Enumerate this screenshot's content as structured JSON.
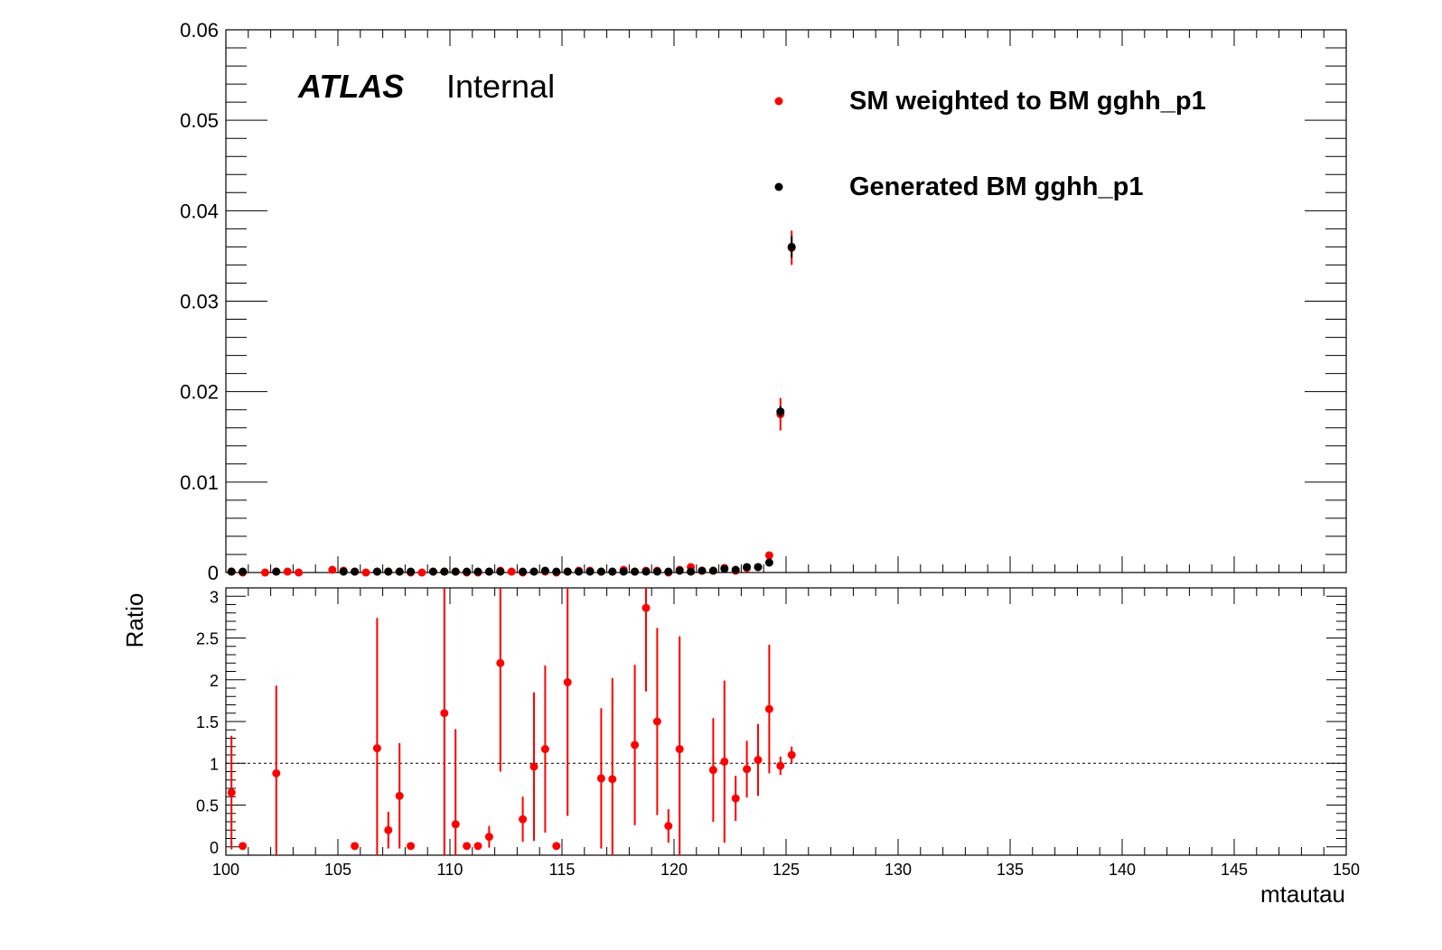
{
  "chart_data": [
    {
      "type": "scatter",
      "panel": "main",
      "xlim": [
        100,
        150
      ],
      "ylim": [
        0,
        0.06
      ],
      "yticks": [
        "0",
        "0.01",
        "0.02",
        "0.03",
        "0.04",
        "0.05",
        "0.06"
      ],
      "label": {
        "atlas": "ATLAS",
        "status": "Internal"
      },
      "legend_position": "top-right",
      "series": [
        {
          "name": "SM weighted to BM gghh_p1",
          "color": "#ff0000",
          "points": [
            [
              100.25,
              0.0001,
              5e-05
            ],
            [
              100.75,
              0.0,
              0.0
            ],
            [
              101.75,
              0.0,
              0.0
            ],
            [
              102.25,
              0.0001,
              5e-05
            ],
            [
              102.75,
              0.0001,
              5e-05
            ],
            [
              103.25,
              0.0,
              0.0
            ],
            [
              104.75,
              0.0003,
              0.0002
            ],
            [
              105.25,
              0.0002,
              0.0001
            ],
            [
              105.75,
              0.0001,
              5e-05
            ],
            [
              106.25,
              0.0,
              0.0
            ],
            [
              106.75,
              0.0001,
              5e-05
            ],
            [
              107.25,
              0.0001,
              5e-05
            ],
            [
              107.75,
              0.0001,
              5e-05
            ],
            [
              108.25,
              0.0,
              0.0
            ],
            [
              108.75,
              0.0,
              0.0
            ],
            [
              109.25,
              0.0001,
              5e-05
            ],
            [
              109.75,
              0.0001,
              5e-05
            ],
            [
              110.25,
              0.0001,
              5e-05
            ],
            [
              110.75,
              0.0,
              0.0
            ],
            [
              111.25,
              0.0,
              0.0
            ],
            [
              111.75,
              0.0001,
              5e-05
            ],
            [
              112.25,
              0.0002,
              0.0001
            ],
            [
              112.75,
              0.0001,
              5e-05
            ],
            [
              113.25,
              0.0,
              0.0
            ],
            [
              113.75,
              0.0001,
              5e-05
            ],
            [
              114.25,
              0.0001,
              5e-05
            ],
            [
              114.75,
              0.0,
              0.0
            ],
            [
              115.25,
              0.0001,
              5e-05
            ],
            [
              115.75,
              0.0002,
              0.0001
            ],
            [
              116.25,
              0.0002,
              0.0001
            ],
            [
              116.75,
              0.0001,
              5e-05
            ],
            [
              117.25,
              0.0001,
              5e-05
            ],
            [
              117.75,
              0.0003,
              0.0001
            ],
            [
              118.25,
              0.0001,
              5e-05
            ],
            [
              118.75,
              0.0002,
              0.0001
            ],
            [
              119.25,
              0.0002,
              0.0001
            ],
            [
              119.75,
              0.0,
              0.0
            ],
            [
              120.25,
              0.0003,
              0.0001
            ],
            [
              120.75,
              0.0006,
              0.0002
            ],
            [
              121.25,
              0.0002,
              0.0001
            ],
            [
              121.75,
              0.0002,
              0.0001
            ],
            [
              122.25,
              0.0005,
              0.0002
            ],
            [
              122.75,
              0.0002,
              0.0001
            ],
            [
              123.25,
              0.0005,
              0.0001
            ],
            [
              123.75,
              0.0006,
              0.0001
            ],
            [
              124.25,
              0.0019,
              0.0003
            ],
            [
              124.75,
              0.0175,
              0.0018
            ],
            [
              125.25,
              0.0359,
              0.0019
            ]
          ]
        },
        {
          "name": "Generated BM gghh_p1",
          "color": "#000000",
          "points": [
            [
              100.25,
              0.0001,
              5e-05
            ],
            [
              100.75,
              0.0001,
              5e-05
            ],
            [
              102.25,
              0.0001,
              5e-05
            ],
            [
              105.25,
              0.0001,
              5e-05
            ],
            [
              105.75,
              0.0001,
              5e-05
            ],
            [
              106.75,
              0.0001,
              5e-05
            ],
            [
              107.25,
              0.0001,
              5e-05
            ],
            [
              107.75,
              0.0001,
              5e-05
            ],
            [
              108.25,
              0.0001,
              5e-05
            ],
            [
              109.25,
              0.0001,
              5e-05
            ],
            [
              109.75,
              0.0001,
              5e-05
            ],
            [
              110.25,
              0.0001,
              5e-05
            ],
            [
              110.75,
              0.0001,
              5e-05
            ],
            [
              111.25,
              0.0001,
              5e-05
            ],
            [
              111.75,
              0.0001,
              5e-05
            ],
            [
              112.25,
              0.0001,
              5e-05
            ],
            [
              113.25,
              0.0001,
              5e-05
            ],
            [
              113.75,
              0.0001,
              5e-05
            ],
            [
              114.25,
              0.0002,
              0.0001
            ],
            [
              114.75,
              0.0001,
              5e-05
            ],
            [
              115.25,
              0.0001,
              5e-05
            ],
            [
              115.75,
              0.0001,
              5e-05
            ],
            [
              116.25,
              0.0001,
              5e-05
            ],
            [
              116.75,
              0.0001,
              5e-05
            ],
            [
              117.25,
              0.0001,
              5e-05
            ],
            [
              117.75,
              0.0001,
              5e-05
            ],
            [
              118.25,
              0.0001,
              5e-05
            ],
            [
              118.75,
              0.0001,
              5e-05
            ],
            [
              119.25,
              0.0001,
              5e-05
            ],
            [
              119.75,
              0.0001,
              5e-05
            ],
            [
              120.25,
              0.0002,
              0.0001
            ],
            [
              120.75,
              0.0001,
              5e-05
            ],
            [
              121.25,
              0.0002,
              0.0001
            ],
            [
              121.75,
              0.0002,
              0.0001
            ],
            [
              122.25,
              0.0004,
              0.0001
            ],
            [
              122.75,
              0.0003,
              0.0001
            ],
            [
              123.25,
              0.0006,
              0.0001
            ],
            [
              123.75,
              0.0006,
              0.0001
            ],
            [
              124.25,
              0.0011,
              0.0002
            ],
            [
              124.75,
              0.0178,
              0.0006
            ],
            [
              125.25,
              0.036,
              0.0012
            ]
          ]
        }
      ]
    },
    {
      "type": "scatter",
      "panel": "ratio",
      "xlim": [
        100,
        150
      ],
      "ylim": [
        -0.1,
        3.1
      ],
      "xticks": [
        "100",
        "105",
        "110",
        "115",
        "120",
        "125",
        "130",
        "135",
        "140",
        "145",
        "150"
      ],
      "yticks": [
        "0",
        "0.5",
        "1",
        "1.5",
        "2",
        "2.5",
        "3"
      ],
      "xlabel": "mtautau",
      "ylabel": "Ratio",
      "reference_line": 1,
      "series": [
        {
          "color": "#ff0000",
          "points": [
            [
              100.25,
              0.65,
              0.68
            ],
            [
              100.75,
              0.01,
              0.0
            ],
            [
              102.25,
              0.88,
              1.05
            ],
            [
              105.75,
              0.01,
              0.0
            ],
            [
              106.75,
              1.18,
              1.56
            ],
            [
              107.25,
              0.2,
              0.22
            ],
            [
              107.75,
              0.61,
              0.63
            ],
            [
              108.25,
              0.01,
              0.0
            ],
            [
              109.75,
              1.6,
              1.7
            ],
            [
              110.25,
              0.27,
              1.14
            ],
            [
              110.75,
              0.01,
              0.0
            ],
            [
              111.25,
              0.01,
              0.0
            ],
            [
              111.75,
              0.12,
              0.13
            ],
            [
              112.25,
              2.2,
              1.3
            ],
            [
              113.25,
              0.33,
              0.27
            ],
            [
              113.75,
              0.96,
              0.89
            ],
            [
              114.25,
              1.17,
              1.0
            ],
            [
              114.75,
              0.01,
              0.0
            ],
            [
              115.25,
              1.97,
              1.6
            ],
            [
              116.75,
              0.82,
              0.84
            ],
            [
              117.25,
              0.81,
              1.21
            ],
            [
              118.25,
              1.22,
              0.96
            ],
            [
              118.75,
              2.86,
              1.0
            ],
            [
              119.25,
              1.5,
              1.12
            ],
            [
              119.75,
              0.25,
              0.2
            ],
            [
              120.25,
              1.17,
              1.35
            ],
            [
              121.75,
              0.92,
              0.62
            ],
            [
              122.25,
              1.02,
              0.97
            ],
            [
              122.75,
              0.58,
              0.27
            ],
            [
              123.25,
              0.93,
              0.34
            ],
            [
              123.75,
              1.04,
              0.43
            ],
            [
              124.25,
              1.65,
              0.77
            ],
            [
              124.75,
              0.97,
              0.11
            ],
            [
              125.25,
              1.1,
              0.1
            ]
          ]
        }
      ]
    }
  ]
}
